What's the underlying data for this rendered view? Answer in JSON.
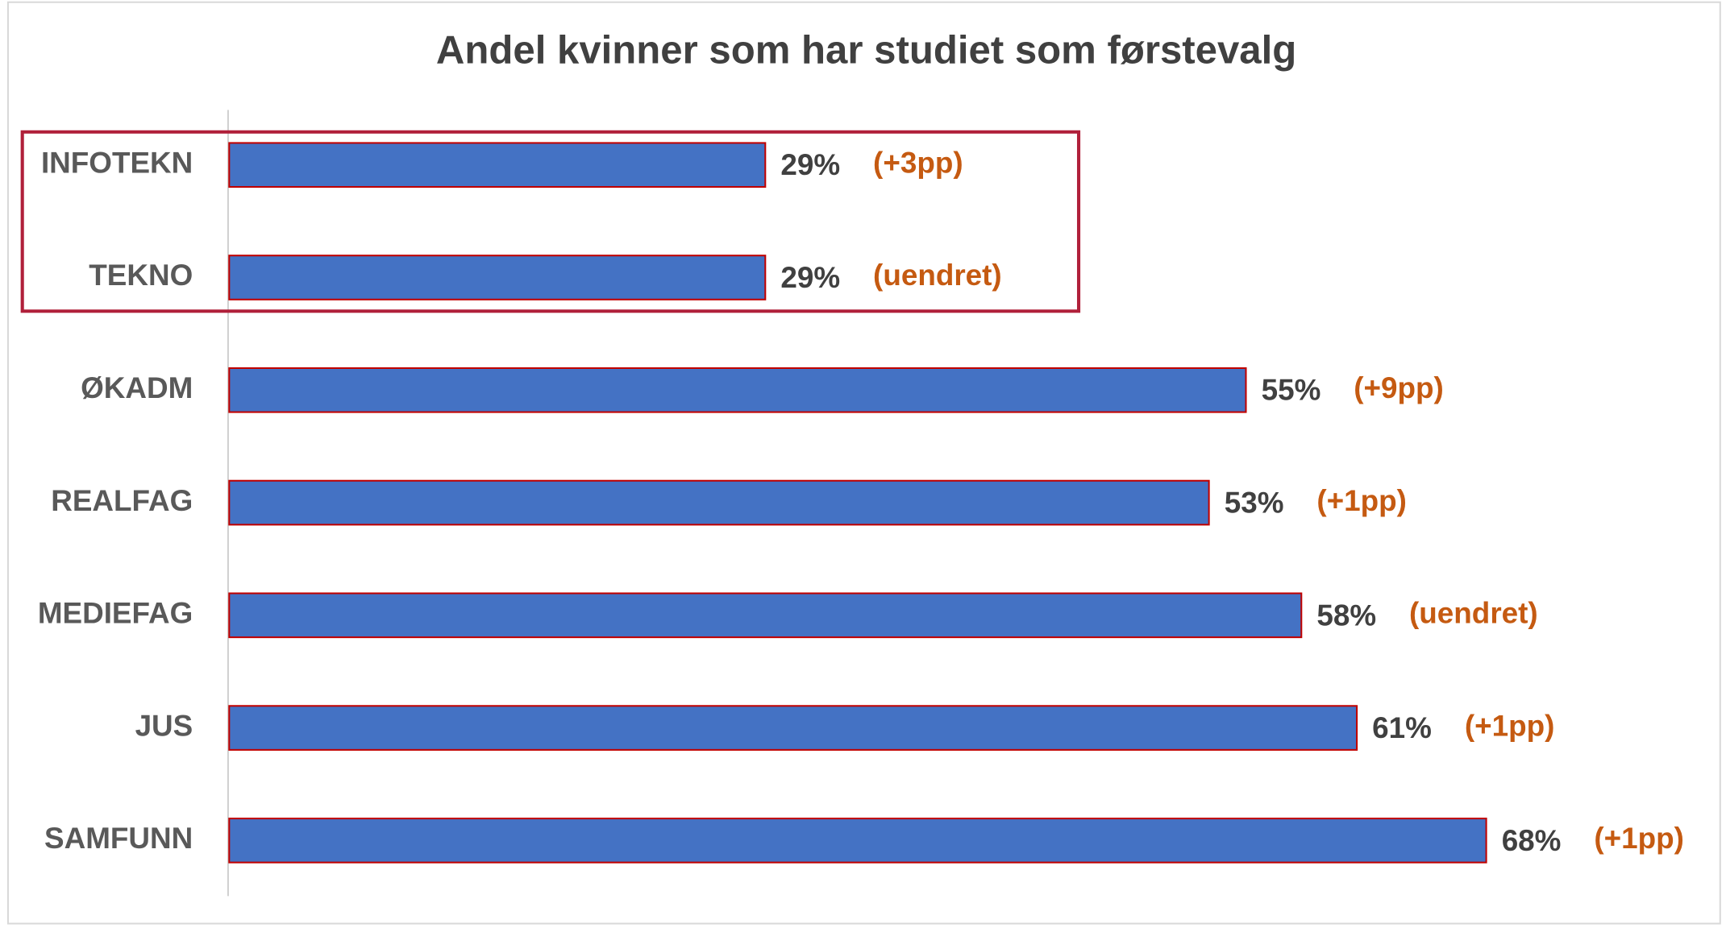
{
  "chart_data": {
    "type": "bar",
    "orientation": "horizontal",
    "title": "Andel kvinner som har studiet som førstevalg",
    "categories": [
      "INFOTEKN",
      "TEKNO",
      "ØKADM",
      "REALFAG",
      "MEDIEFAG",
      "JUS",
      "SAMFUNN"
    ],
    "values": [
      29,
      29,
      55,
      53,
      58,
      61,
      68
    ],
    "value_labels": [
      "29%",
      "29%",
      "55%",
      "53%",
      "58%",
      "61%",
      "68%"
    ],
    "annotations": [
      "(+3pp)",
      "(uendret)",
      "(+9pp)",
      "(+1pp)",
      "(uendret)",
      "(+1pp)",
      "(+1pp)"
    ],
    "color": "#4472c4",
    "edge_color": "#c00000",
    "annotation_color": "#c55a11"
  }
}
